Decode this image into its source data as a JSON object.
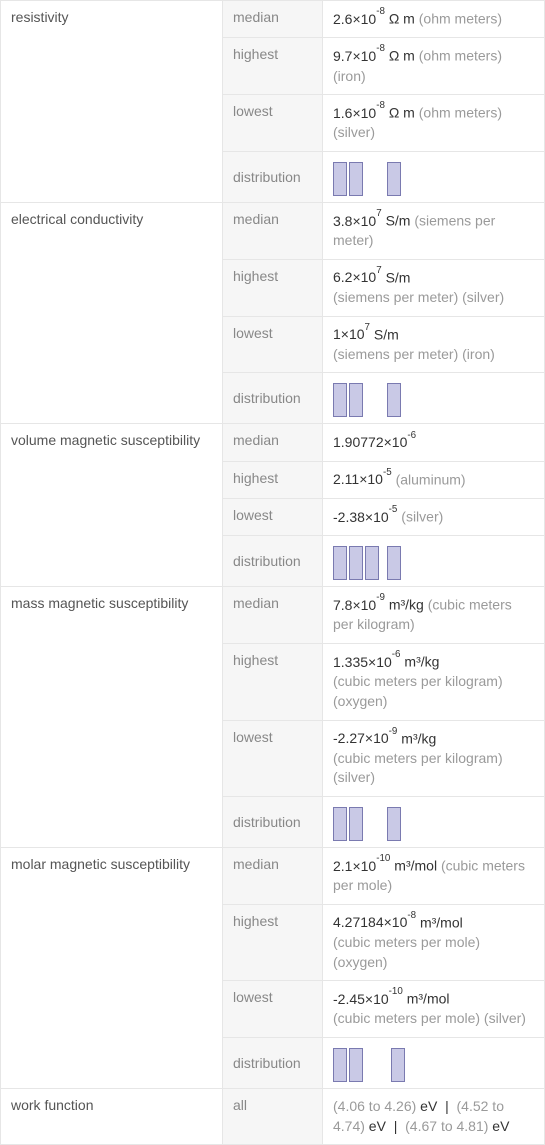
{
  "colors": {
    "bar_fill": "#c9c9e6",
    "bar_border": "#7a7ab0",
    "cell_border": "#e6e6e6",
    "col2_bg": "#f6f6f6",
    "text_main": "#333333",
    "text_label": "#555555",
    "text_sublabel": "#888888",
    "text_note": "#9a9a9a"
  },
  "labels": {
    "median": "median",
    "highest": "highest",
    "lowest": "lowest",
    "distribution": "distribution",
    "all": "all"
  },
  "sections": [
    {
      "name": "resistivity",
      "rows": [
        {
          "label_key": "median",
          "mantissa": "2.6",
          "exp": "-8",
          "unit": "Ω m",
          "note": "(ohm meters)"
        },
        {
          "label_key": "highest",
          "mantissa": "9.7",
          "exp": "-8",
          "unit": "Ω m",
          "note": "(ohm meters) (iron)"
        },
        {
          "label_key": "lowest",
          "mantissa": "1.6",
          "exp": "-8",
          "unit": "Ω m",
          "note": "(ohm meters) (silver)"
        },
        {
          "label_key": "distribution",
          "dist": {
            "groups": [
              [
                34,
                34
              ],
              [
                34
              ]
            ],
            "gap_after": [
              0
            ]
          }
        }
      ]
    },
    {
      "name": "electrical conductivity",
      "rows": [
        {
          "label_key": "median",
          "mantissa": "3.8",
          "exp": "7",
          "unit": "S/m",
          "note": "(siemens per meter)"
        },
        {
          "label_key": "highest",
          "mantissa": "6.2",
          "exp": "7",
          "unit": "S/m",
          "note_after_unit": true,
          "note": "(siemens per meter) (silver)"
        },
        {
          "label_key": "lowest",
          "mantissa": "1",
          "exp": "7",
          "unit": "S/m",
          "note_after_unit": true,
          "note": "(siemens per meter) (iron)"
        },
        {
          "label_key": "distribution",
          "dist": {
            "groups": [
              [
                34,
                34
              ],
              [
                34
              ]
            ]
          }
        }
      ]
    },
    {
      "name": "volume magnetic susceptibility",
      "rows": [
        {
          "label_key": "median",
          "mantissa": "1.90772",
          "exp": "-6"
        },
        {
          "label_key": "highest",
          "mantissa": "2.11",
          "exp": "-5",
          "note": "(aluminum)"
        },
        {
          "label_key": "lowest",
          "mantissa": "-2.38",
          "exp": "-5",
          "note": "(silver)"
        },
        {
          "label_key": "distribution",
          "dist": {
            "groups": [
              [
                34,
                34,
                34
              ],
              [
                34
              ]
            ],
            "group_gap": 8
          }
        }
      ]
    },
    {
      "name": "mass magnetic susceptibility",
      "rows": [
        {
          "label_key": "median",
          "mantissa": "7.8",
          "exp": "-9",
          "unit": "m³/kg",
          "note": "(cubic meters per kilogram)"
        },
        {
          "label_key": "highest",
          "mantissa": "1.335",
          "exp": "-6",
          "unit": "m³/kg",
          "note_after_unit": true,
          "note": "(cubic meters per kilogram) (oxygen)"
        },
        {
          "label_key": "lowest",
          "mantissa": "-2.27",
          "exp": "-9",
          "unit": "m³/kg",
          "note_after_unit": true,
          "note": "(cubic meters per kilogram) (silver)"
        },
        {
          "label_key": "distribution",
          "dist": {
            "groups": [
              [
                34,
                34
              ],
              [
                34
              ]
            ]
          }
        }
      ]
    },
    {
      "name": "molar magnetic susceptibility",
      "rows": [
        {
          "label_key": "median",
          "mantissa": "2.1",
          "exp": "-10",
          "unit": "m³/mol",
          "note": "(cubic meters per mole)"
        },
        {
          "label_key": "highest",
          "mantissa": "4.27184",
          "exp": "-8",
          "unit": "m³/mol",
          "note_after_unit": true,
          "note": "(cubic meters per mole) (oxygen)"
        },
        {
          "label_key": "lowest",
          "mantissa": "-2.45",
          "exp": "-10",
          "unit": "m³/mol",
          "note_after_unit": true,
          "note": "(cubic meters per mole) (silver)"
        },
        {
          "label_key": "distribution",
          "dist": {
            "groups": [
              [
                34,
                34
              ],
              [
                34
              ]
            ],
            "group_gap": 28
          }
        }
      ]
    },
    {
      "name": "work function",
      "rows": [
        {
          "label_key": "all",
          "raw_html": "<span class='val-note'>(4.06 to 4.26)</span> eV &nbsp;|&nbsp; <span class='val-note'>(4.52 to 4.74)</span> eV &nbsp;|&nbsp; <span class='val-note'>(4.67 to 4.81)</span> eV"
        }
      ]
    }
  ]
}
